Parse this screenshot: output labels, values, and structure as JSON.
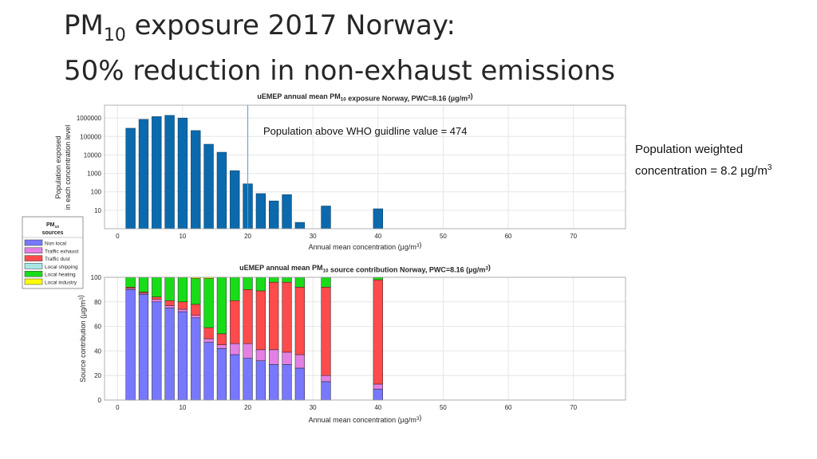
{
  "slide": {
    "title_prefix": "PM",
    "title_sub": "10",
    "title_suffix": " exposure 2017 Norway:",
    "title_line2": "50% reduction in non-exhaust emissions",
    "pwc_line1": "Population weighted",
    "pwc_line2": "concentration =  8.2 µg/m",
    "pwc_sup": "3"
  },
  "colors": {
    "exposure_bar": "#0b6aad",
    "who_line": "#4aa3df",
    "Non local": "#7878ff",
    "Traffic exhaust": "#e380e3",
    "Traffic dust": "#ff4b4b",
    "Local shipping": "#a8e6e6",
    "Local heating": "#19dc19",
    "Local industry": "#ffff00"
  },
  "chart_data": [
    {
      "type": "bar",
      "title": "uEMEP annual mean PM10 exposure Norway, PWC=8.16 (µg/m3)",
      "xlabel": "Annual mean concentration (µg/m3)",
      "ylabel": "Population exposed in each concentration level",
      "yscale": "log",
      "xlim": [
        -2,
        78
      ],
      "ylim": [
        1,
        5000000
      ],
      "xticks": [
        0,
        10,
        20,
        30,
        40,
        50,
        60,
        70
      ],
      "yticks": [
        10,
        100,
        1000,
        10000,
        100000,
        1000000
      ],
      "ytick_labels": [
        "10",
        "100",
        "1000",
        "10000",
        "100000",
        "1000000"
      ],
      "annotation": "Population above WHO guidline value = 474",
      "who_line_x": 20,
      "x": [
        2,
        4,
        6,
        8,
        10,
        12,
        14,
        16,
        18,
        20,
        22,
        24,
        26,
        28,
        32,
        40
      ],
      "values": [
        280000,
        850000,
        1200000,
        1400000,
        1000000,
        210000,
        38000,
        14000,
        1400,
        270,
        80,
        32,
        70,
        2.2,
        17,
        12
      ]
    },
    {
      "type": "bar",
      "stacked": true,
      "title": "uEMEP annual mean PM10 source contribution Norway, PWC=8.16 (µg/m3)",
      "xlabel": "Annual mean concentration (µg/m3)",
      "ylabel": "Source contribution (µg/m3)",
      "xlim": [
        -2,
        78
      ],
      "ylim": [
        0,
        100
      ],
      "xticks": [
        0,
        10,
        20,
        30,
        40,
        50,
        60,
        70
      ],
      "yticks": [
        0,
        20,
        40,
        60,
        80,
        100
      ],
      "legend_title": "PM10 sources",
      "legend_placement": "left, outside",
      "x": [
        2,
        4,
        6,
        8,
        10,
        12,
        14,
        16,
        18,
        20,
        22,
        24,
        26,
        28,
        32,
        40
      ],
      "series": [
        {
          "name": "Non local",
          "values": [
            90,
            86,
            80,
            75,
            72,
            67,
            47,
            42,
            37,
            34,
            32,
            29,
            29,
            26,
            15,
            9
          ]
        },
        {
          "name": "Traffic exhaust",
          "values": [
            1,
            1,
            2,
            2,
            2,
            2,
            3,
            3,
            9,
            12,
            9,
            12,
            10,
            11,
            5,
            4
          ]
        },
        {
          "name": "Traffic dust",
          "values": [
            1,
            1,
            2,
            4,
            6,
            9,
            9,
            9,
            35,
            44,
            48,
            55,
            57,
            55,
            72,
            85
          ]
        },
        {
          "name": "Local shipping",
          "values": [
            0,
            0,
            0,
            0,
            0,
            0,
            0,
            0,
            0,
            0,
            0,
            0,
            0,
            0,
            0,
            0
          ]
        },
        {
          "name": "Local heating",
          "values": [
            8,
            12,
            16,
            19,
            20,
            21,
            40,
            46,
            19,
            10,
            11,
            4,
            4,
            8,
            8,
            2
          ]
        },
        {
          "name": "Local industry",
          "values": [
            0,
            0,
            0,
            0,
            0,
            1,
            1,
            0,
            0,
            0,
            0,
            0,
            0,
            0,
            0,
            0
          ]
        }
      ]
    }
  ]
}
